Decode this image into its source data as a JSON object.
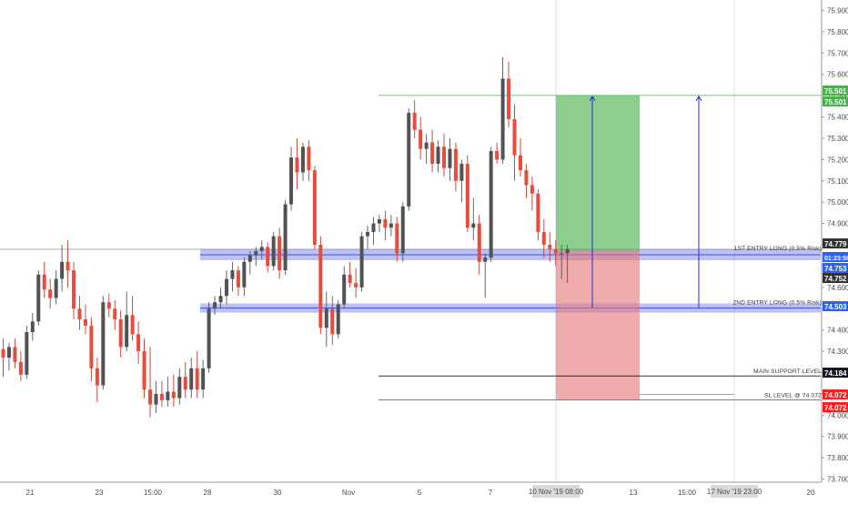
{
  "chart_data": {
    "type": "candlestick",
    "price_axis": {
      "ticks": [
        "75.900",
        "75.800",
        "75.700",
        "75.600",
        "75.500",
        "75.400",
        "75.300",
        "75.200",
        "75.100",
        "75.000",
        "74.900",
        "74.800",
        "74.700",
        "74.600",
        "74.500",
        "74.400",
        "74.300",
        "74.200",
        "74.100",
        "74.000",
        "73.900",
        "73.800",
        "73.700"
      ],
      "range": [
        73.66,
        75.99
      ]
    },
    "date_axis": {
      "labels": [
        "21",
        "23",
        "15:00",
        "28",
        "30",
        "Nov",
        "5",
        "7",
        "13",
        "15:00",
        "20"
      ],
      "cursor_labels": [
        "10 Nov '19",
        "17 Nov '19"
      ],
      "cursor_times": [
        "08:00",
        "23:00"
      ]
    },
    "price_tags": [
      {
        "value": "75.501",
        "color": "#4caf50",
        "text_color": "#ffffff"
      },
      {
        "value": "75.501",
        "color": "#4caf50",
        "text_color": "#ffffff"
      },
      {
        "value": "74.779",
        "color": "#333333",
        "text_color": "#ffffff"
      },
      {
        "value": "74.753",
        "color": "#2962ff",
        "text_color": "#ffffff"
      },
      {
        "value": "01:23:50",
        "color": "#2962ff",
        "text_color": "#ffffff"
      },
      {
        "value": "74.752",
        "color": "#333333",
        "text_color": "#ffffff"
      },
      {
        "value": "74.503",
        "color": "#2962ff",
        "text_color": "#ffffff"
      },
      {
        "value": "74.184",
        "color": "#131722",
        "text_color": "#ffffff"
      },
      {
        "value": "74.072",
        "color": "#ff1f1f",
        "text_color": "#ffffff"
      },
      {
        "value": "74.072",
        "color": "#ff1f1f",
        "text_color": "#ffffff"
      }
    ],
    "annotations": {
      "entry1": "1ST ENTRY LONG (0.5% Risk)",
      "entry2": "2ND ENTRY LONG (0.5% Risk)",
      "support": "MAIN SUPPORT LEVEL",
      "sl": "SL LEVEL @ 74.072"
    },
    "levels": {
      "entry1": 74.753,
      "entry2": 74.503,
      "support": 74.184,
      "sl": 74.072,
      "target": 75.501,
      "last_close": 74.779
    },
    "colors": {
      "bull": "#525252",
      "bear": "#e74c3c",
      "wick": "#444444",
      "zone": "#3f51e0",
      "profit": "#66bb6a",
      "loss": "#ef9a9a",
      "target_line": "#4caf50",
      "sl_line": "#e53935",
      "support_line": "#131722"
    },
    "candles": [
      {
        "o": 74.31,
        "h": 74.36,
        "l": 74.18,
        "c": 74.27
      },
      {
        "o": 74.27,
        "h": 74.34,
        "l": 74.21,
        "c": 74.32
      },
      {
        "o": 74.32,
        "h": 74.36,
        "l": 74.22,
        "c": 74.25
      },
      {
        "o": 74.25,
        "h": 74.3,
        "l": 74.16,
        "c": 74.19
      },
      {
        "o": 74.19,
        "h": 74.42,
        "l": 74.17,
        "c": 74.39
      },
      {
        "o": 74.39,
        "h": 74.48,
        "l": 74.35,
        "c": 74.44
      },
      {
        "o": 74.44,
        "h": 74.68,
        "l": 74.42,
        "c": 74.66
      },
      {
        "o": 74.66,
        "h": 74.72,
        "l": 74.55,
        "c": 74.59
      },
      {
        "o": 74.59,
        "h": 74.64,
        "l": 74.5,
        "c": 74.55
      },
      {
        "o": 74.55,
        "h": 74.68,
        "l": 74.52,
        "c": 74.64
      },
      {
        "o": 74.64,
        "h": 74.8,
        "l": 74.58,
        "c": 74.72
      },
      {
        "o": 74.72,
        "h": 74.82,
        "l": 74.6,
        "c": 74.68
      },
      {
        "o": 74.68,
        "h": 74.72,
        "l": 74.45,
        "c": 74.5
      },
      {
        "o": 74.5,
        "h": 74.56,
        "l": 74.4,
        "c": 74.45
      },
      {
        "o": 74.45,
        "h": 74.52,
        "l": 74.38,
        "c": 74.42
      },
      {
        "o": 74.42,
        "h": 74.46,
        "l": 74.16,
        "c": 74.22
      },
      {
        "o": 74.22,
        "h": 74.27,
        "l": 74.06,
        "c": 74.14
      },
      {
        "o": 74.14,
        "h": 74.56,
        "l": 74.12,
        "c": 74.53
      },
      {
        "o": 74.53,
        "h": 74.57,
        "l": 74.46,
        "c": 74.5
      },
      {
        "o": 74.5,
        "h": 74.54,
        "l": 74.4,
        "c": 74.45
      },
      {
        "o": 74.45,
        "h": 74.49,
        "l": 74.27,
        "c": 74.32
      },
      {
        "o": 74.32,
        "h": 74.58,
        "l": 74.3,
        "c": 74.47
      },
      {
        "o": 74.47,
        "h": 74.56,
        "l": 74.35,
        "c": 74.38
      },
      {
        "o": 74.38,
        "h": 74.44,
        "l": 74.24,
        "c": 74.3
      },
      {
        "o": 74.3,
        "h": 74.36,
        "l": 74.08,
        "c": 74.12
      },
      {
        "o": 74.12,
        "h": 74.32,
        "l": 73.99,
        "c": 74.05
      },
      {
        "o": 74.05,
        "h": 74.16,
        "l": 74.01,
        "c": 74.1
      },
      {
        "o": 74.1,
        "h": 74.16,
        "l": 74.04,
        "c": 74.07
      },
      {
        "o": 74.07,
        "h": 74.18,
        "l": 74.04,
        "c": 74.11
      },
      {
        "o": 74.11,
        "h": 74.19,
        "l": 74.04,
        "c": 74.08
      },
      {
        "o": 74.08,
        "h": 74.22,
        "l": 74.05,
        "c": 74.18
      },
      {
        "o": 74.18,
        "h": 74.25,
        "l": 74.08,
        "c": 74.12
      },
      {
        "o": 74.12,
        "h": 74.27,
        "l": 74.08,
        "c": 74.22
      },
      {
        "o": 74.22,
        "h": 74.3,
        "l": 74.08,
        "c": 74.12
      },
      {
        "o": 74.12,
        "h": 74.26,
        "l": 74.08,
        "c": 74.22
      },
      {
        "o": 74.22,
        "h": 74.53,
        "l": 74.2,
        "c": 74.5
      },
      {
        "o": 74.5,
        "h": 74.56,
        "l": 74.47,
        "c": 74.53
      },
      {
        "o": 74.53,
        "h": 74.6,
        "l": 74.5,
        "c": 74.56
      },
      {
        "o": 74.56,
        "h": 74.68,
        "l": 74.52,
        "c": 74.64
      },
      {
        "o": 74.64,
        "h": 74.72,
        "l": 74.58,
        "c": 74.68
      },
      {
        "o": 74.68,
        "h": 74.7,
        "l": 74.56,
        "c": 74.6
      },
      {
        "o": 74.6,
        "h": 74.74,
        "l": 74.56,
        "c": 74.72
      },
      {
        "o": 74.72,
        "h": 74.77,
        "l": 74.66,
        "c": 74.75
      },
      {
        "o": 74.75,
        "h": 74.79,
        "l": 74.7,
        "c": 74.77
      },
      {
        "o": 74.77,
        "h": 74.82,
        "l": 74.73,
        "c": 74.79
      },
      {
        "o": 74.79,
        "h": 74.81,
        "l": 74.67,
        "c": 74.7
      },
      {
        "o": 74.7,
        "h": 74.86,
        "l": 74.68,
        "c": 74.84
      },
      {
        "o": 74.84,
        "h": 74.88,
        "l": 74.64,
        "c": 74.68
      },
      {
        "o": 74.68,
        "h": 75.01,
        "l": 74.66,
        "c": 74.99
      },
      {
        "o": 74.99,
        "h": 75.26,
        "l": 74.96,
        "c": 75.21
      },
      {
        "o": 75.21,
        "h": 75.3,
        "l": 75.06,
        "c": 75.14
      },
      {
        "o": 75.14,
        "h": 75.28,
        "l": 75.1,
        "c": 75.26
      },
      {
        "o": 75.26,
        "h": 75.29,
        "l": 75.1,
        "c": 75.15
      },
      {
        "o": 75.15,
        "h": 75.17,
        "l": 74.78,
        "c": 74.8
      },
      {
        "o": 74.8,
        "h": 74.84,
        "l": 74.38,
        "c": 74.41
      },
      {
        "o": 74.41,
        "h": 74.58,
        "l": 74.32,
        "c": 74.5
      },
      {
        "o": 74.5,
        "h": 74.56,
        "l": 74.33,
        "c": 74.38
      },
      {
        "o": 74.38,
        "h": 74.54,
        "l": 74.36,
        "c": 74.52
      },
      {
        "o": 74.52,
        "h": 74.7,
        "l": 74.5,
        "c": 74.66
      },
      {
        "o": 74.66,
        "h": 74.72,
        "l": 74.6,
        "c": 74.62
      },
      {
        "o": 74.62,
        "h": 74.69,
        "l": 74.55,
        "c": 74.6
      },
      {
        "o": 74.6,
        "h": 74.86,
        "l": 74.58,
        "c": 74.84
      },
      {
        "o": 74.84,
        "h": 74.89,
        "l": 74.78,
        "c": 74.86
      },
      {
        "o": 74.86,
        "h": 74.93,
        "l": 74.8,
        "c": 74.9
      },
      {
        "o": 74.9,
        "h": 74.94,
        "l": 74.86,
        "c": 74.92
      },
      {
        "o": 74.92,
        "h": 74.96,
        "l": 74.82,
        "c": 74.88
      },
      {
        "o": 74.88,
        "h": 74.94,
        "l": 74.84,
        "c": 74.9
      },
      {
        "o": 74.9,
        "h": 74.93,
        "l": 74.72,
        "c": 74.76
      },
      {
        "o": 74.76,
        "h": 75.0,
        "l": 74.72,
        "c": 74.98
      },
      {
        "o": 74.98,
        "h": 75.44,
        "l": 74.96,
        "c": 75.42
      },
      {
        "o": 75.42,
        "h": 75.48,
        "l": 75.3,
        "c": 75.34
      },
      {
        "o": 75.34,
        "h": 75.4,
        "l": 75.2,
        "c": 75.25
      },
      {
        "o": 75.25,
        "h": 75.32,
        "l": 75.18,
        "c": 75.28
      },
      {
        "o": 75.28,
        "h": 75.34,
        "l": 75.14,
        "c": 75.18
      },
      {
        "o": 75.18,
        "h": 75.29,
        "l": 75.14,
        "c": 75.26
      },
      {
        "o": 75.26,
        "h": 75.32,
        "l": 75.12,
        "c": 75.16
      },
      {
        "o": 75.16,
        "h": 75.3,
        "l": 75.1,
        "c": 75.25
      },
      {
        "o": 75.25,
        "h": 75.28,
        "l": 75.05,
        "c": 75.1
      },
      {
        "o": 75.1,
        "h": 75.2,
        "l": 75.0,
        "c": 75.18
      },
      {
        "o": 75.18,
        "h": 75.22,
        "l": 74.86,
        "c": 74.88
      },
      {
        "o": 74.88,
        "h": 75.02,
        "l": 74.82,
        "c": 74.9
      },
      {
        "o": 74.9,
        "h": 74.94,
        "l": 74.66,
        "c": 74.72
      },
      {
        "o": 74.72,
        "h": 74.76,
        "l": 74.55,
        "c": 74.74
      },
      {
        "o": 74.74,
        "h": 75.26,
        "l": 74.72,
        "c": 75.24
      },
      {
        "o": 75.24,
        "h": 75.28,
        "l": 75.18,
        "c": 75.2
      },
      {
        "o": 75.2,
        "h": 75.68,
        "l": 75.18,
        "c": 75.58
      },
      {
        "o": 75.58,
        "h": 75.66,
        "l": 75.35,
        "c": 75.39
      },
      {
        "o": 75.39,
        "h": 75.46,
        "l": 75.1,
        "c": 75.22
      },
      {
        "o": 75.22,
        "h": 75.3,
        "l": 75.12,
        "c": 75.15
      },
      {
        "o": 75.15,
        "h": 75.18,
        "l": 75.02,
        "c": 75.08
      },
      {
        "o": 75.08,
        "h": 75.12,
        "l": 74.96,
        "c": 75.04
      },
      {
        "o": 75.04,
        "h": 75.06,
        "l": 74.82,
        "c": 74.86
      },
      {
        "o": 74.86,
        "h": 74.92,
        "l": 74.74,
        "c": 74.8
      },
      {
        "o": 74.8,
        "h": 74.86,
        "l": 74.72,
        "c": 74.78
      },
      {
        "o": 74.78,
        "h": 74.82,
        "l": 74.7,
        "c": 74.76
      },
      {
        "o": 74.76,
        "h": 74.8,
        "l": 74.64,
        "c": 74.76
      },
      {
        "o": 74.76,
        "h": 74.8,
        "l": 74.62,
        "c": 74.78
      }
    ]
  }
}
